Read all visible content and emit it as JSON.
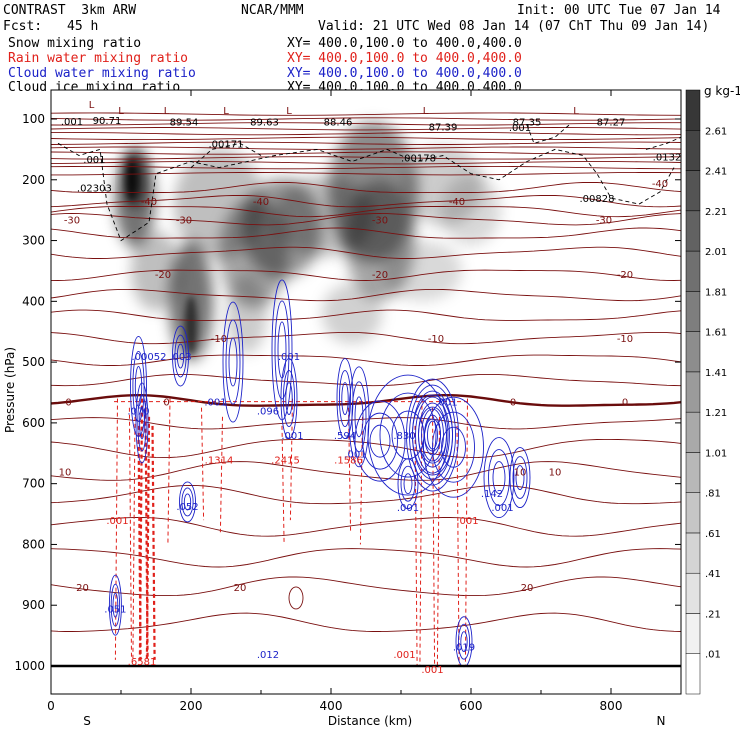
{
  "header": {
    "model": "CONTRAST  3km ARW",
    "center": "NCAR/MMM",
    "init": "Init: 00 UTC Tue 07 Jan 14",
    "fcst_label": "Fcst:",
    "fcst_value": "45 h",
    "valid": "Valid: 21 UTC Wed 08 Jan 14 (07 ChT Thu 09 Jan 14)"
  },
  "legend": [
    {
      "name": "Snow mixing ratio",
      "xy": "XY= 400.0,100.0 to 400.0,400.0",
      "color": "#000000"
    },
    {
      "name": "Rain water mixing ratio",
      "xy": "XY= 400.0,100.0 to 400.0,400.0",
      "color": "#e0201a"
    },
    {
      "name": "Cloud water mixing ratio",
      "xy": "XY= 400.0,100.0 to 400.0,400.0",
      "color": "#1c22c8"
    },
    {
      "name": "Cloud ice mixing ratio",
      "xy": "XY= 400.0,100.0 to 400.0,400.0",
      "color": "#000000"
    }
  ],
  "chart_data": {
    "type": "cross-section contour",
    "xlabel": "Distance (km)",
    "ylabel": "Pressure (hPa)",
    "xlim": [
      0,
      900
    ],
    "ylim": [
      1040,
      60
    ],
    "x_ticks": [
      0,
      200,
      400,
      600,
      800
    ],
    "y_ticks": [
      100,
      200,
      300,
      400,
      500,
      600,
      700,
      800,
      900,
      1000
    ],
    "endpoints": {
      "left": "S",
      "right": "N"
    },
    "colorbar": {
      "unit": "g kg-1",
      "levels": [
        0.01,
        0.21,
        0.41,
        0.61,
        0.81,
        1.01,
        1.21,
        1.41,
        1.61,
        1.81,
        2.01,
        2.21,
        2.41,
        2.61
      ],
      "labels": [
        ".01",
        ".21",
        ".41",
        ".61",
        ".81",
        "1.01",
        "1.21",
        "1.41",
        "1.61",
        "1.81",
        "2.01",
        "2.21",
        "2.41",
        "2.61"
      ]
    },
    "temperature_contours": [
      {
        "value": "-40",
        "pressure": 235,
        "labels_km": [
          140,
          300,
          580
        ]
      },
      {
        "value": "-40",
        "pressure": 205,
        "labels_km": [
          870
        ]
      },
      {
        "value": "-30",
        "pressure": 265,
        "labels_km": [
          30,
          190,
          470,
          790
        ]
      },
      {
        "value": "-20",
        "pressure": 355,
        "labels_km": [
          160,
          470,
          820
        ]
      },
      {
        "value": "-10",
        "pressure": 460,
        "labels_km": [
          240,
          550,
          820
        ]
      },
      {
        "value": "0",
        "pressure": 565,
        "labels_km": [
          25,
          165,
          660,
          820
        ]
      },
      {
        "value": "10",
        "pressure": 680,
        "labels_km": [
          20,
          720,
          670
        ]
      },
      {
        "value": "20",
        "pressure": 870,
        "labels_km": [
          45,
          270,
          680
        ]
      }
    ],
    "low_labels": [
      {
        "text": "L",
        "km": 58,
        "p": 75
      },
      {
        "text": "L",
        "km": 100,
        "p": 85
      },
      {
        "text": "L",
        "km": 165,
        "p": 85
      },
      {
        "text": "L",
        "km": 250,
        "p": 85
      },
      {
        "text": "L",
        "km": 340,
        "p": 85
      },
      {
        "text": "L",
        "km": 535,
        "p": 85
      },
      {
        "text": "L",
        "km": 750,
        "p": 85
      }
    ],
    "value_labels_ice": [
      {
        "text": ".001",
        "km": 30,
        "p": 103
      },
      {
        "text": "90.71",
        "km": 80,
        "p": 102
      },
      {
        "text": "89.54",
        "km": 190,
        "p": 104
      },
      {
        "text": "89.63",
        "km": 305,
        "p": 104
      },
      {
        "text": "88.46",
        "km": 410,
        "p": 104
      },
      {
        "text": "87.39",
        "km": 560,
        "p": 112
      },
      {
        "text": "87.35",
        "km": 680,
        "p": 104
      },
      {
        "text": "87.27",
        "km": 800,
        "p": 104
      },
      {
        "text": ".001",
        "km": 670,
        "p": 113
      },
      {
        "text": ".00171",
        "km": 250,
        "p": 140
      },
      {
        "text": ".00178",
        "km": 525,
        "p": 163
      },
      {
        "text": ".0132",
        "km": 880,
        "p": 162
      },
      {
        "text": ".001",
        "km": 62,
        "p": 166
      },
      {
        "text": ".02303",
        "km": 62,
        "p": 213
      },
      {
        "text": ".00828",
        "km": 780,
        "p": 230
      }
    ],
    "value_labels_rain": [
      {
        "text": ".1314",
        "km": 240,
        "p": 660
      },
      {
        "text": ".2415",
        "km": 335,
        "p": 660
      },
      {
        "text": ".1586",
        "km": 425,
        "p": 660
      },
      {
        "text": ".001",
        "km": 95,
        "p": 760
      },
      {
        "text": ".001",
        "km": 595,
        "p": 760
      },
      {
        "text": ".001",
        "km": 505,
        "p": 980
      },
      {
        "text": ".001",
        "km": 545,
        "p": 1005
      },
      {
        "text": ".6581",
        "km": 130,
        "p": 992
      }
    ],
    "value_labels_cloud": [
      {
        "text": ".00052",
        "km": 140,
        "p": 490
      },
      {
        "text": ".003",
        "km": 185,
        "p": 490
      },
      {
        "text": ".001",
        "km": 340,
        "p": 490
      },
      {
        "text": ".070",
        "km": 125,
        "p": 580
      },
      {
        "text": ".001",
        "km": 235,
        "p": 565
      },
      {
        "text": ".096",
        "km": 310,
        "p": 580
      },
      {
        "text": ".001",
        "km": 345,
        "p": 620
      },
      {
        "text": ".594",
        "km": 420,
        "p": 620
      },
      {
        "text": ".001",
        "km": 435,
        "p": 650
      },
      {
        "text": ".830",
        "km": 505,
        "p": 620
      },
      {
        "text": ".001",
        "km": 565,
        "p": 565
      },
      {
        "text": ".052",
        "km": 195,
        "p": 737
      },
      {
        "text": ".142",
        "km": 630,
        "p": 715
      },
      {
        "text": ".001",
        "km": 645,
        "p": 738
      },
      {
        "text": ".051",
        "km": 92,
        "p": 905
      },
      {
        "text": ".012",
        "km": 310,
        "p": 980
      },
      {
        "text": ".001",
        "km": 510,
        "p": 738
      },
      {
        "text": ".019",
        "km": 590,
        "p": 968
      }
    ]
  }
}
